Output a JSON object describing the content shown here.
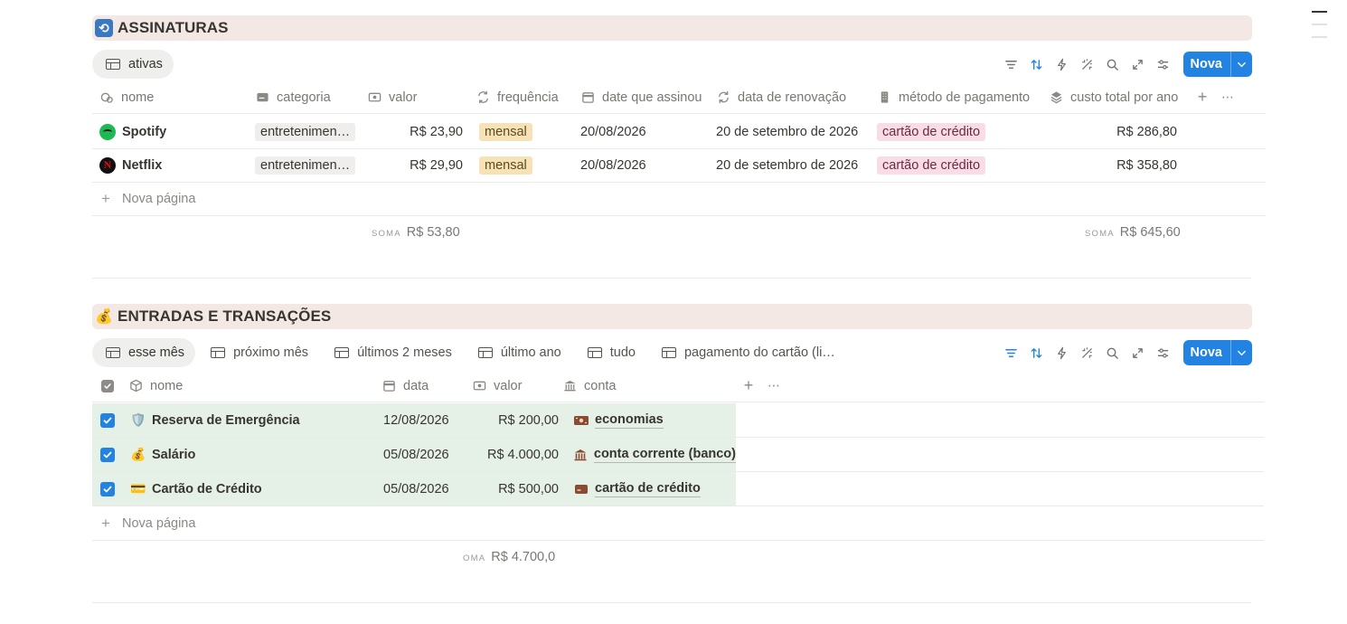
{
  "subscriptions": {
    "title": "ASSINATURAS",
    "icon": "cycle-icon",
    "tabs": [
      {
        "label": "ativas",
        "active": true
      }
    ],
    "new_button": "Nova",
    "columns": [
      "nome",
      "categoria",
      "valor",
      "frequência",
      "date que assinou",
      "data de renovação",
      "método de pagamento",
      "custo total por ano"
    ],
    "rows": [
      {
        "nome": "Spotify",
        "categoria": "entretenimen…",
        "valor": "R$ 23,90",
        "frequencia": "mensal",
        "assinou": "20/08/2026",
        "renovacao": "20 de setembro de 2026",
        "metodo": "cartão de crédito",
        "total": "R$ 286,80"
      },
      {
        "nome": "Netflix",
        "categoria": "entretenimen…",
        "valor": "R$ 29,90",
        "frequencia": "mensal",
        "assinou": "20/08/2026",
        "renovacao": "20 de setembro de 2026",
        "metodo": "cartão de crédito",
        "total": "R$ 358,80"
      }
    ],
    "new_page": "Nova página",
    "sum_label": "SOMA",
    "sum_valor": "R$ 53,80",
    "sum_total": "R$ 645,60"
  },
  "transactions": {
    "title": "ENTRADAS E TRANSAÇÕES",
    "icon": "money-bag-icon",
    "tabs": [
      {
        "label": "esse mês",
        "active": true
      },
      {
        "label": "próximo mês"
      },
      {
        "label": "últimos 2 meses"
      },
      {
        "label": "último ano"
      },
      {
        "label": "tudo"
      },
      {
        "label": "pagamento do cartão (li…"
      }
    ],
    "new_button": "Nova",
    "columns": [
      "nome",
      "data",
      "valor",
      "conta"
    ],
    "rows": [
      {
        "emoji": "🛡️",
        "nome": "Reserva de Emergência",
        "data": "12/08/2026",
        "valor": "R$ 200,00",
        "conta": "economias",
        "conta_icon": "money-icon",
        "checked": true
      },
      {
        "emoji": "💰",
        "nome": "Salário",
        "data": "05/08/2026",
        "valor": "R$ 4.000,00",
        "conta": "conta corrente (banco)",
        "conta_icon": "bank-icon",
        "checked": true
      },
      {
        "emoji": "💳",
        "nome": "Cartão de Crédito",
        "data": "05/08/2026",
        "valor": "R$ 500,00",
        "conta": "cartão de crédito",
        "conta_icon": "card-icon",
        "checked": true
      }
    ],
    "new_page": "Nova página",
    "sum_label": "OMA",
    "sum_valor": "R$ 4.700,0"
  },
  "colors": {
    "accent": "#2383e2",
    "header_bg": "#f3e8e3",
    "row_highlight": "#e5f0e6"
  }
}
